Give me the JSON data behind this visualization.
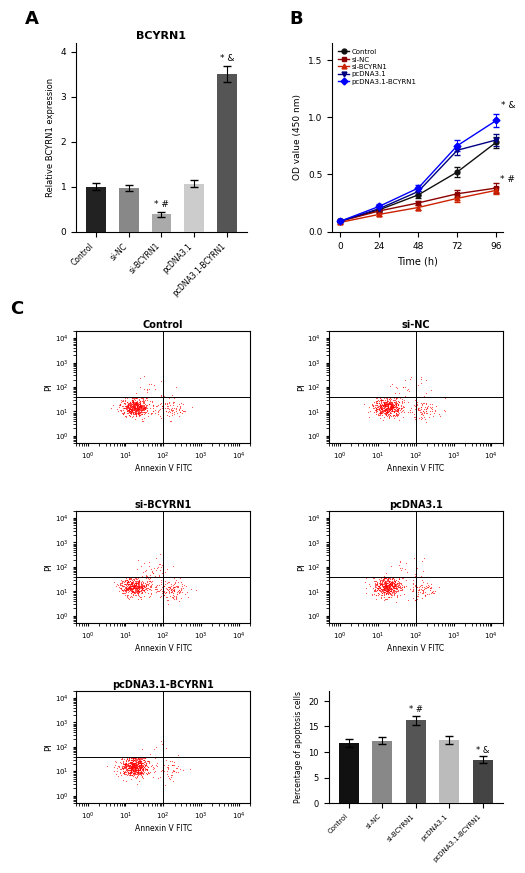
{
  "panel_A": {
    "title": "BCYRN1",
    "ylabel": "Relative BCYRN1 expression",
    "categories": [
      "Control",
      "si-NC",
      "si-BCYRN1",
      "pcDNA3.1",
      "pcDNA3.1-BCYRN1"
    ],
    "values": [
      1.0,
      0.97,
      0.38,
      1.06,
      3.5
    ],
    "errors": [
      0.07,
      0.06,
      0.05,
      0.08,
      0.18
    ],
    "colors": [
      "#222222",
      "#888888",
      "#aaaaaa",
      "#cccccc",
      "#555555"
    ],
    "ylim": [
      0,
      4.2
    ],
    "yticks": [
      0,
      1,
      2,
      3,
      4
    ],
    "annotations": {
      "si-BCYRN1": "* #",
      "pcDNA3.1-BCYRN1": "* &"
    }
  },
  "panel_B": {
    "xlabel": "Time (h)",
    "ylabel": "OD value (450 nm)",
    "xticks": [
      0,
      24,
      48,
      72,
      96
    ],
    "yticks": [
      0.0,
      0.5,
      1.0,
      1.5
    ],
    "ylim": [
      0.0,
      1.65
    ],
    "series": {
      "Control": {
        "color": "#111111",
        "marker": "o",
        "values": [
          0.09,
          0.19,
          0.32,
          0.52,
          0.78
        ],
        "errors": [
          0.01,
          0.02,
          0.03,
          0.04,
          0.05
        ]
      },
      "si-NC": {
        "color": "#8b0000",
        "marker": "s",
        "values": [
          0.09,
          0.18,
          0.25,
          0.33,
          0.38
        ],
        "errors": [
          0.01,
          0.02,
          0.02,
          0.03,
          0.04
        ]
      },
      "si-BCYRN1": {
        "color": "#cc2200",
        "marker": "^",
        "values": [
          0.08,
          0.15,
          0.21,
          0.29,
          0.36
        ],
        "errors": [
          0.01,
          0.01,
          0.02,
          0.03,
          0.03
        ]
      },
      "pcDNA3.1": {
        "color": "#000080",
        "marker": "v",
        "values": [
          0.09,
          0.2,
          0.35,
          0.71,
          0.8
        ],
        "errors": [
          0.01,
          0.02,
          0.03,
          0.04,
          0.05
        ]
      },
      "pcDNA3.1-BCYRN1": {
        "color": "#0000ff",
        "marker": "D",
        "values": [
          0.09,
          0.22,
          0.38,
          0.75,
          0.97
        ],
        "errors": [
          0.01,
          0.02,
          0.03,
          0.05,
          0.06
        ]
      }
    },
    "annotations": {
      "si-BCYRN1": "* #",
      "pcDNA3.1-BCYRN1": "* &"
    }
  },
  "panel_C_bar": {
    "ylabel": "Percentage of apoptosis cells",
    "categories": [
      "Control",
      "si-NC",
      "si-BCYRN1",
      "pcDNA3.1",
      "pcDNA3.1-BCYRN1"
    ],
    "values": [
      11.8,
      12.2,
      16.2,
      12.4,
      8.5
    ],
    "errors": [
      0.8,
      0.7,
      0.9,
      0.8,
      0.7
    ],
    "colors": [
      "#111111",
      "#888888",
      "#555555",
      "#bbbbbb",
      "#444444"
    ],
    "ylim": [
      0,
      22
    ],
    "yticks": [
      0,
      5,
      10,
      15,
      20
    ],
    "annotations": {
      "si-BCYRN1": "* #",
      "pcDNA3.1-BCYRN1": "* &"
    }
  },
  "flow_configs": [
    {
      "title": "Control",
      "seed": 10,
      "n_live": 500,
      "n_early": 80,
      "n_late": 20
    },
    {
      "title": "si-NC",
      "seed": 20,
      "n_live": 480,
      "n_early": 90,
      "n_late": 25
    },
    {
      "title": "si-BCYRN1",
      "seed": 30,
      "n_live": 450,
      "n_early": 130,
      "n_late": 40
    },
    {
      "title": "pcDNA3.1",
      "seed": 40,
      "n_live": 490,
      "n_early": 75,
      "n_late": 20
    },
    {
      "title": "pcDNA3.1-BCYRN1",
      "seed": 50,
      "n_live": 600,
      "n_early": 45,
      "n_late": 8
    }
  ],
  "flow_xlabel": "Annexin V FITC",
  "flow_ylabel": "PI",
  "flow_xlim": [
    0.5,
    20000
  ],
  "flow_ylim": [
    0.5,
    20000
  ],
  "flow_xticks": [
    1,
    10,
    100,
    1000,
    10000
  ],
  "flow_yticks": [
    1,
    10,
    100,
    1000,
    10000
  ],
  "flow_vline": 100,
  "flow_hline": 40
}
